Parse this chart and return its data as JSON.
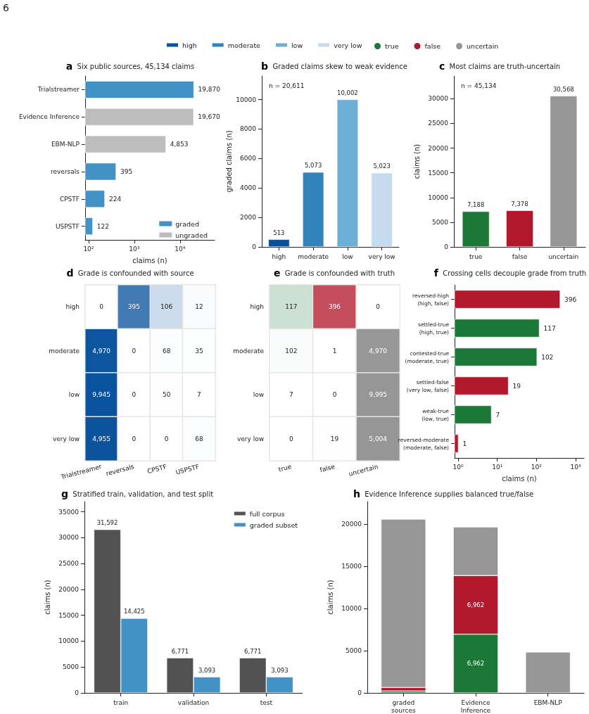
{
  "chart_data": [
    {
      "type": "bar",
      "orientation": "horizontal",
      "title": "a Six public sources, 45,134 claims",
      "xlabel": "claims (n)",
      "annotations": [
        "6"
      ],
      "categories": [
        "Trialstreamer",
        "Evidence Inference",
        "EBM-NLP",
        "reversals",
        "CPSTF",
        "USPSTF"
      ],
      "series": [
        {
          "name": "graded",
          "color": "#4292c6",
          "values": [
            19870,
            null,
            null,
            395,
            224,
            122
          ],
          "value_labels": [
            "19,870",
            null,
            null,
            "395",
            "224",
            "122"
          ]
        },
        {
          "name": "ungraded",
          "color": "#bdbdbd",
          "values": [
            null,
            19670,
            4853,
            null,
            null,
            null
          ],
          "value_labels": [
            null,
            "19,670",
            "4,853",
            null,
            null,
            null
          ]
        }
      ],
      "log": "x",
      "xlim": [
        84,
        57000
      ],
      "xticks": [
        {
          "value": 100,
          "label": "10²"
        },
        {
          "value": 1000,
          "label": "10³"
        },
        {
          "value": 10000,
          "label": "10⁴"
        }
      ],
      "legend": "bottom right"
    },
    {
      "type": "bar",
      "title": "b Graded claims skew to weak evidence",
      "ylabel": "graded claims (n)",
      "annotations": [
        "n = 20,611"
      ],
      "categories": [
        "high",
        "moderate",
        "low",
        "very low"
      ],
      "series": [
        {
          "name": "high",
          "color": "#08519c",
          "values": [
            513,
            null,
            null,
            null
          ],
          "value_labels": [
            "513",
            null,
            null,
            null
          ]
        },
        {
          "name": "moderate",
          "color": "#3182bd",
          "values": [
            null,
            5073,
            null,
            null
          ],
          "value_labels": [
            null,
            "5,073",
            null,
            null
          ]
        },
        {
          "name": "low",
          "color": "#6baed6",
          "values": [
            null,
            null,
            10002,
            null
          ],
          "value_labels": [
            null,
            null,
            "10,002",
            null
          ]
        },
        {
          "name": "very low",
          "color": "#c6dbef",
          "values": [
            null,
            null,
            null,
            5023
          ],
          "value_labels": [
            null,
            null,
            null,
            "5,023"
          ]
        }
      ],
      "ylim": [
        0,
        11600
      ],
      "yticks": [
        0,
        2000,
        4000,
        6000,
        8000,
        10000
      ],
      "legend": "top"
    },
    {
      "type": "bar",
      "title": "c Most claims are truth-uncertain",
      "ylabel": "claims (n)",
      "annotations": [
        "n = 45,134"
      ],
      "categories": [
        "true",
        "false",
        "uncertain"
      ],
      "series": [
        {
          "name": "true",
          "color": "#1b7837",
          "values": [
            7188,
            null,
            null
          ],
          "value_labels": [
            "7,188",
            null,
            null
          ]
        },
        {
          "name": "false",
          "color": "#b2182b",
          "values": [
            null,
            7378,
            null
          ],
          "value_labels": [
            null,
            "7,378",
            null
          ]
        },
        {
          "name": "uncertain",
          "color": "#969696",
          "values": [
            null,
            null,
            30568
          ],
          "value_labels": [
            null,
            null,
            "30,568"
          ]
        }
      ],
      "ylim": [
        0,
        34600
      ],
      "yticks": [
        0,
        5000,
        10000,
        15000,
        20000,
        25000,
        30000
      ],
      "legend": "top",
      "marker": "circle"
    },
    {
      "type": "heatmap",
      "title": "d Grade is confounded with source",
      "color": "#08519c",
      "categories": [
        "Trialstreamer",
        "reversals",
        "CPSTF",
        "USPSTF"
      ],
      "y_categories": [
        "high",
        "moderate",
        "low",
        "very low"
      ],
      "cells": [
        [
          0,
          395,
          106,
          12
        ],
        [
          4970,
          0,
          68,
          35
        ],
        [
          9945,
          0,
          50,
          7
        ],
        [
          4955,
          0,
          0,
          68
        ]
      ],
      "cell_labels": [
        [
          "0",
          "395",
          "106",
          "12"
        ],
        [
          "4,970",
          "0",
          "68",
          "35"
        ],
        [
          "9,945",
          "0",
          "50",
          "7"
        ],
        [
          "4,955",
          "0",
          "0",
          "68"
        ]
      ]
    },
    {
      "type": "heatmap",
      "title": "e Grade is confounded with truth",
      "colors": [
        "#1b7837",
        "#b2182b",
        "#969696"
      ],
      "categories": [
        "true",
        "false",
        "uncertain"
      ],
      "y_categories": [
        "high",
        "moderate",
        "low",
        "very low"
      ],
      "cells": [
        [
          117,
          396,
          0
        ],
        [
          102,
          1,
          4970
        ],
        [
          7,
          0,
          9995
        ],
        [
          0,
          19,
          5004
        ]
      ],
      "cell_labels": [
        [
          "117",
          "396",
          "0"
        ],
        [
          "102",
          "1",
          "4,970"
        ],
        [
          "7",
          "0",
          "9,995"
        ],
        [
          "0",
          "19",
          "5,004"
        ]
      ]
    },
    {
      "type": "bar",
      "orientation": "horizontal",
      "title": "f Crossing cells decouple grade from truth",
      "xlabel": "claims (n)",
      "categories": [
        "reversed-high\n(high, false)",
        "settled-true\n(high, true)",
        "contested-true\n(moderate, true)",
        "settled-false\n(very low, false)",
        "weak-true\n(low, true)",
        "reversed-moderate\n(moderate, false)"
      ],
      "values": [
        396,
        117,
        102,
        19,
        7,
        1
      ],
      "colors": [
        "#b2182b",
        "#1b7837",
        "#1b7837",
        "#b2182b",
        "#1b7837",
        "#b2182b"
      ],
      "log": "x",
      "xlim": [
        0.81,
        1640
      ],
      "xticks": [
        {
          "value": 1,
          "label": "10⁰"
        },
        {
          "value": 10,
          "label": "10¹"
        },
        {
          "value": 100,
          "label": "10²"
        },
        {
          "value": 1000,
          "label": "10³"
        }
      ],
      "data_labels": true
    },
    {
      "type": "bar",
      "title": "g Stratified train, validation, and test split",
      "ylabel": "claims (n)",
      "categories": [
        "train",
        "validation",
        "test"
      ],
      "series": [
        {
          "name": "full corpus",
          "color": "#525252",
          "values": [
            31592,
            6771,
            6771
          ],
          "value_labels": [
            "31,592",
            "6,771",
            "6,771"
          ]
        },
        {
          "name": "graded subset",
          "color": "#4292c6",
          "values": [
            14425,
            3093,
            3093
          ],
          "value_labels": [
            "14,425",
            "3,093",
            "3,093"
          ]
        }
      ],
      "ylim": [
        0,
        37000
      ],
      "yticks": [
        0,
        5000,
        10000,
        15000,
        20000,
        25000,
        30000,
        35000
      ],
      "legend": "top right"
    },
    {
      "type": "bar",
      "stacked": true,
      "title": "h Evidence Inference supplies balanced true/false",
      "ylabel": "claims (n)",
      "categories": [
        "graded\nsources",
        "Evidence\nInference",
        "EBM-NLP"
      ],
      "series": [
        {
          "color": "#1b7837",
          "values": [
            226,
            6962,
            null
          ],
          "value_labels": [
            null,
            "6,962",
            null
          ]
        },
        {
          "color": "#b2182b",
          "values": [
            416,
            6962,
            null
          ],
          "value_labels": [
            null,
            "6,962",
            null
          ]
        },
        {
          "color": "#969696",
          "values": [
            19969,
            5746,
            4853
          ]
        }
      ],
      "ylim": [
        0,
        22700
      ],
      "yticks": [
        0,
        5000,
        10000,
        15000,
        20000
      ]
    }
  ]
}
